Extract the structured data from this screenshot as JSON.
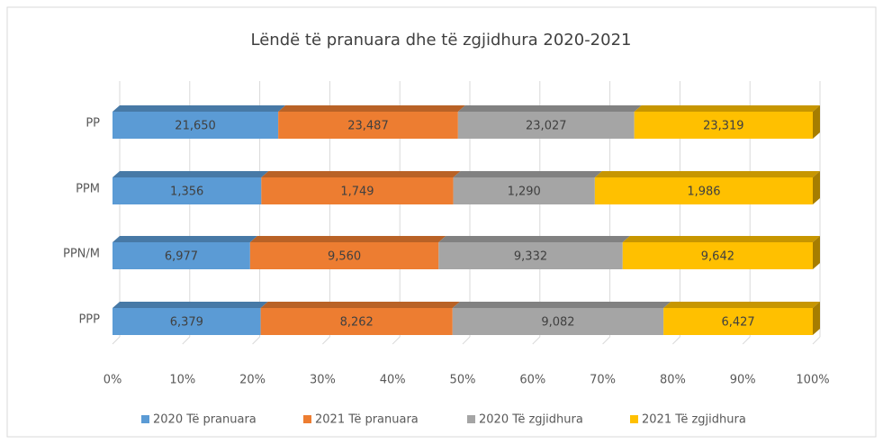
{
  "chart_data": {
    "type": "bar",
    "orientation": "horizontal",
    "stacked": "percent",
    "three_d": true,
    "title": "Lëndë të pranuara dhe të zgjidhura 2020-2021",
    "categories": [
      "PP",
      "PPM",
      "PPN/M",
      "PPP"
    ],
    "series": [
      {
        "name": "2020 Të pranuara",
        "color": "#5b9bd5",
        "values": [
          21650,
          1356,
          6977,
          6379
        ],
        "value_labels": [
          "21,650",
          "1,356",
          "6,977",
          "6,379"
        ]
      },
      {
        "name": "2021 Të pranuara",
        "color": "#ed7d31",
        "values": [
          23487,
          1749,
          9560,
          8262
        ],
        "value_labels": [
          "23,487",
          "1,749",
          "9,560",
          "8,262"
        ]
      },
      {
        "name": "2020 Të zgjidhura",
        "color": "#a5a5a5",
        "values": [
          23027,
          1290,
          9332,
          9082
        ],
        "value_labels": [
          "23,027",
          "1,290",
          "9,332",
          "9,082"
        ]
      },
      {
        "name": "2021 Të zgjidhura",
        "color": "#ffc000",
        "values": [
          23319,
          1986,
          9642,
          6427
        ],
        "value_labels": [
          "23,319",
          "1,986",
          "9,642",
          "6,427"
        ]
      }
    ],
    "xlim": [
      0,
      100
    ],
    "xticks": [
      {
        "value": 0,
        "label": "0%"
      },
      {
        "value": 10,
        "label": "10%"
      },
      {
        "value": 20,
        "label": "20%"
      },
      {
        "value": 30,
        "label": "30%"
      },
      {
        "value": 40,
        "label": "40%"
      },
      {
        "value": 50,
        "label": "50%"
      },
      {
        "value": 60,
        "label": "60%"
      },
      {
        "value": 70,
        "label": "70%"
      },
      {
        "value": 80,
        "label": "80%"
      },
      {
        "value": 90,
        "label": "90%"
      },
      {
        "value": 100,
        "label": "100%"
      }
    ],
    "grid": true,
    "legend": "bottom"
  }
}
